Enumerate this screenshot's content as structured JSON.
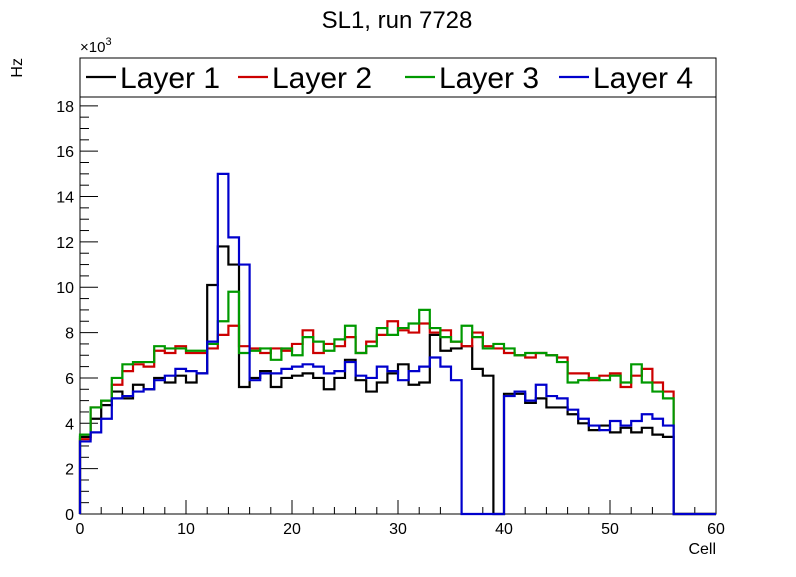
{
  "chart_data": {
    "type": "line",
    "title": "SL1, run 7728",
    "xlabel": "Cell",
    "ylabel": "Hz",
    "y_exponent_label": "×10",
    "y_exponent_power": "3",
    "xlim": [
      0,
      60
    ],
    "ylim": [
      0,
      19.8
    ],
    "x_ticks": [
      0,
      10,
      20,
      30,
      40,
      50,
      60
    ],
    "y_ticks": [
      0,
      2,
      4,
      6,
      8,
      10,
      12,
      14,
      16,
      18
    ],
    "y_units": "Hz ×10^3",
    "bin_edges_start": 0,
    "bin_width": 1,
    "legend_position": "top",
    "series": [
      {
        "name": "Layer 1",
        "color": "#000000",
        "values": [
          3.4,
          4.2,
          4.8,
          5.4,
          5.1,
          5.7,
          5.5,
          6.0,
          5.8,
          6.1,
          5.8,
          6.2,
          10.1,
          11.8,
          11.0,
          5.6,
          6.0,
          6.3,
          5.6,
          6.0,
          6.1,
          6.2,
          6.0,
          5.5,
          6.0,
          6.8,
          5.9,
          5.4,
          5.8,
          6.2,
          6.6,
          5.7,
          5.8,
          7.9,
          7.2,
          7.3,
          7.4,
          6.4,
          6.1,
          0.0,
          5.3,
          5.3,
          4.9,
          5.1,
          4.7,
          4.7,
          4.4,
          4.0,
          3.7,
          3.9,
          3.6,
          3.8,
          3.6,
          3.8,
          3.5,
          3.4,
          0.0,
          0.0,
          0.0,
          0.0
        ]
      },
      {
        "name": "Layer 2",
        "color": "#cc0000",
        "values": [
          3.3,
          4.7,
          5.0,
          5.7,
          6.3,
          6.6,
          6.5,
          7.2,
          7.1,
          7.4,
          7.1,
          7.1,
          7.3,
          7.9,
          8.3,
          7.4,
          7.3,
          7.1,
          7.3,
          7.2,
          7.5,
          8.1,
          7.1,
          7.5,
          7.4,
          7.8,
          7.1,
          7.6,
          7.9,
          8.5,
          8.1,
          8.0,
          8.4,
          8.0,
          8.1,
          7.6,
          7.4,
          8.0,
          7.4,
          7.3,
          7.1,
          7.0,
          6.9,
          7.1,
          7.0,
          6.9,
          6.2,
          6.2,
          5.9,
          6.1,
          6.2,
          5.6,
          6.1,
          6.4,
          5.8,
          5.4,
          0.0,
          0.0,
          0.0,
          0.0
        ]
      },
      {
        "name": "Layer 3",
        "color": "#009900",
        "values": [
          3.5,
          4.7,
          5.0,
          6.0,
          6.6,
          6.7,
          6.7,
          7.4,
          7.3,
          7.3,
          7.2,
          7.2,
          7.5,
          8.5,
          9.8,
          7.1,
          7.2,
          7.3,
          6.8,
          7.3,
          7.0,
          7.8,
          7.6,
          7.2,
          7.7,
          8.3,
          7.1,
          7.4,
          8.2,
          7.9,
          8.2,
          8.4,
          9.0,
          8.2,
          7.8,
          7.6,
          8.3,
          7.8,
          7.3,
          7.5,
          7.3,
          7.0,
          7.1,
          7.1,
          7.0,
          6.7,
          5.8,
          5.9,
          6.0,
          5.9,
          6.1,
          5.8,
          6.6,
          5.8,
          5.4,
          5.1,
          0.0,
          0.0,
          0.0,
          0.0
        ]
      },
      {
        "name": "Layer 4",
        "color": "#0000cc",
        "values": [
          3.2,
          3.6,
          4.2,
          5.1,
          5.2,
          5.4,
          5.5,
          5.9,
          6.1,
          6.4,
          6.3,
          6.2,
          7.6,
          15.0,
          12.2,
          11.0,
          5.9,
          6.2,
          6.2,
          6.4,
          6.5,
          6.6,
          6.5,
          6.2,
          6.3,
          6.7,
          6.1,
          6.0,
          6.5,
          6.3,
          5.9,
          6.3,
          6.5,
          6.9,
          6.5,
          5.9,
          0.0,
          0.0,
          0.0,
          0.0,
          5.2,
          5.4,
          5.0,
          5.7,
          5.2,
          5.1,
          4.6,
          4.2,
          3.9,
          3.7,
          4.1,
          3.9,
          4.1,
          4.4,
          4.2,
          3.9,
          0.0,
          0.0,
          0.0,
          0.0
        ]
      }
    ]
  }
}
